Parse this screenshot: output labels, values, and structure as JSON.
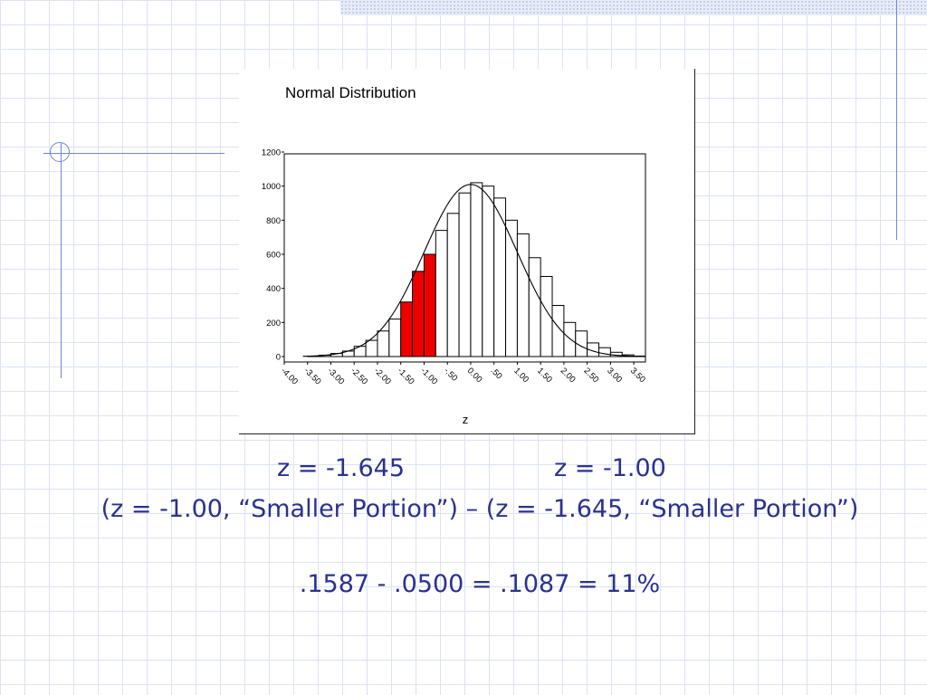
{
  "chart_data": {
    "type": "bar",
    "title": "Normal Distribution",
    "xlabel": "z",
    "ylabel": "",
    "ylim": [
      0,
      1200
    ],
    "yticks": [
      0,
      200,
      400,
      600,
      800,
      1000,
      1200
    ],
    "xticks": [
      "-4.00",
      "-3.50",
      "-3.00",
      "-2.50",
      "-2.00",
      "-1.50",
      "-1.00",
      "-.50",
      "0.00",
      ".50",
      "1.00",
      "1.50",
      "2.00",
      "2.50",
      "3.00",
      "3.50"
    ],
    "bin_width": 0.25,
    "x_start": -4.0,
    "x_end": 3.75,
    "bins": [
      {
        "start": -3.5,
        "value": 2
      },
      {
        "start": -3.25,
        "value": 8
      },
      {
        "start": -3.0,
        "value": 18
      },
      {
        "start": -2.75,
        "value": 32
      },
      {
        "start": -2.5,
        "value": 60
      },
      {
        "start": -2.25,
        "value": 95
      },
      {
        "start": -2.0,
        "value": 150
      },
      {
        "start": -1.75,
        "value": 220
      },
      {
        "start": -1.5,
        "value": 320,
        "highlight": true
      },
      {
        "start": -1.25,
        "value": 500,
        "highlight": true
      },
      {
        "start": -1.0,
        "value": 600,
        "highlight": true
      },
      {
        "start": -0.75,
        "value": 740
      },
      {
        "start": -0.5,
        "value": 840
      },
      {
        "start": -0.25,
        "value": 960
      },
      {
        "start": 0.0,
        "value": 1020
      },
      {
        "start": 0.25,
        "value": 1000
      },
      {
        "start": 0.5,
        "value": 930
      },
      {
        "start": 0.75,
        "value": 800
      },
      {
        "start": 1.0,
        "value": 720
      },
      {
        "start": 1.25,
        "value": 580
      },
      {
        "start": 1.5,
        "value": 470
      },
      {
        "start": 1.75,
        "value": 300
      },
      {
        "start": 2.0,
        "value": 200
      },
      {
        "start": 2.25,
        "value": 150
      },
      {
        "start": 2.5,
        "value": 80
      },
      {
        "start": 2.75,
        "value": 52
      },
      {
        "start": 3.0,
        "value": 25
      },
      {
        "start": 3.25,
        "value": 10
      },
      {
        "start": 3.5,
        "value": 3
      }
    ],
    "curve_peak": 1010,
    "colors": {
      "bar": "#ffffff",
      "highlight": "#ee0000",
      "outline": "#000000"
    }
  },
  "captions": {
    "z_left": "z = -1.645",
    "z_right": "z = -1.00",
    "formula": "(z = -1.00, “Smaller Portion”) – (z = -1.645, “Smaller Portion”)",
    "result": ".1587 - .0500 = .1087 = 11%"
  }
}
